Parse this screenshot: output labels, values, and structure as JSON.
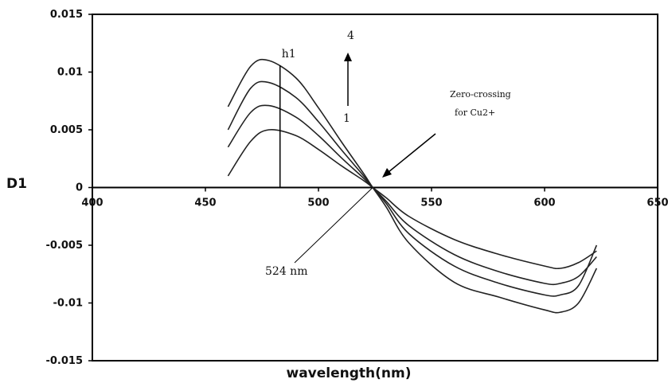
{
  "chart_data": {
    "type": "line",
    "xlabel": "wavelength(nm)",
    "ylabel": "D1",
    "xlim": [
      400,
      650
    ],
    "ylim": [
      -0.015,
      0.015
    ],
    "x_ticks": [
      "400",
      "450",
      "500",
      "550",
      "600",
      "650"
    ],
    "y_ticks": [
      "0.015",
      "0.01",
      "0.005",
      "0",
      "-0.005",
      "-0.01",
      "-0.015"
    ],
    "grid": false,
    "legend": "none",
    "series": [
      {
        "x": [
          460,
          470,
          478,
          490,
          500,
          510,
          520,
          524,
          530,
          540,
          560,
          580,
          600,
          607,
          615,
          623
        ],
        "y": [
          0.001,
          0.004,
          0.005,
          0.0045,
          0.0033,
          0.0019,
          0.0006,
          0,
          -0.0009,
          -0.0025,
          -0.0045,
          -0.0058,
          -0.0068,
          -0.007,
          -0.0065,
          -0.0055
        ]
      },
      {
        "x": [
          460,
          470,
          478,
          490,
          500,
          510,
          520,
          524,
          530,
          540,
          560,
          580,
          600,
          607,
          615,
          623
        ],
        "y": [
          0.0035,
          0.0065,
          0.0071,
          0.0061,
          0.0045,
          0.0026,
          0.0008,
          0,
          -0.0012,
          -0.0033,
          -0.0058,
          -0.0073,
          -0.0083,
          -0.0083,
          -0.0077,
          -0.006
        ]
      },
      {
        "x": [
          460,
          470,
          478,
          490,
          500,
          510,
          520,
          524,
          530,
          540,
          560,
          580,
          600,
          607,
          615,
          623
        ],
        "y": [
          0.005,
          0.0086,
          0.0091,
          0.0078,
          0.0057,
          0.0033,
          0.001,
          0,
          -0.0014,
          -0.004,
          -0.0068,
          -0.0083,
          -0.0093,
          -0.0093,
          -0.0085,
          -0.005
        ]
      },
      {
        "x": [
          460,
          470,
          478,
          490,
          500,
          510,
          520,
          524,
          530,
          540,
          560,
          580,
          600,
          607,
          615,
          623
        ],
        "y": [
          0.007,
          0.0105,
          0.011,
          0.0095,
          0.0069,
          0.004,
          0.0012,
          0,
          -0.0017,
          -0.0048,
          -0.0082,
          -0.0095,
          -0.0106,
          -0.0108,
          -0.01,
          -0.007
        ]
      }
    ],
    "annotations": {
      "h1_label": "h1",
      "h1_x": 483,
      "arrow_top_label": "4",
      "arrow_bottom_label": "1",
      "zero_crossing_line1": "Zero-crossing",
      "zero_crossing_line2": "for Cu2+",
      "wavelength_label": "524 nm"
    }
  }
}
